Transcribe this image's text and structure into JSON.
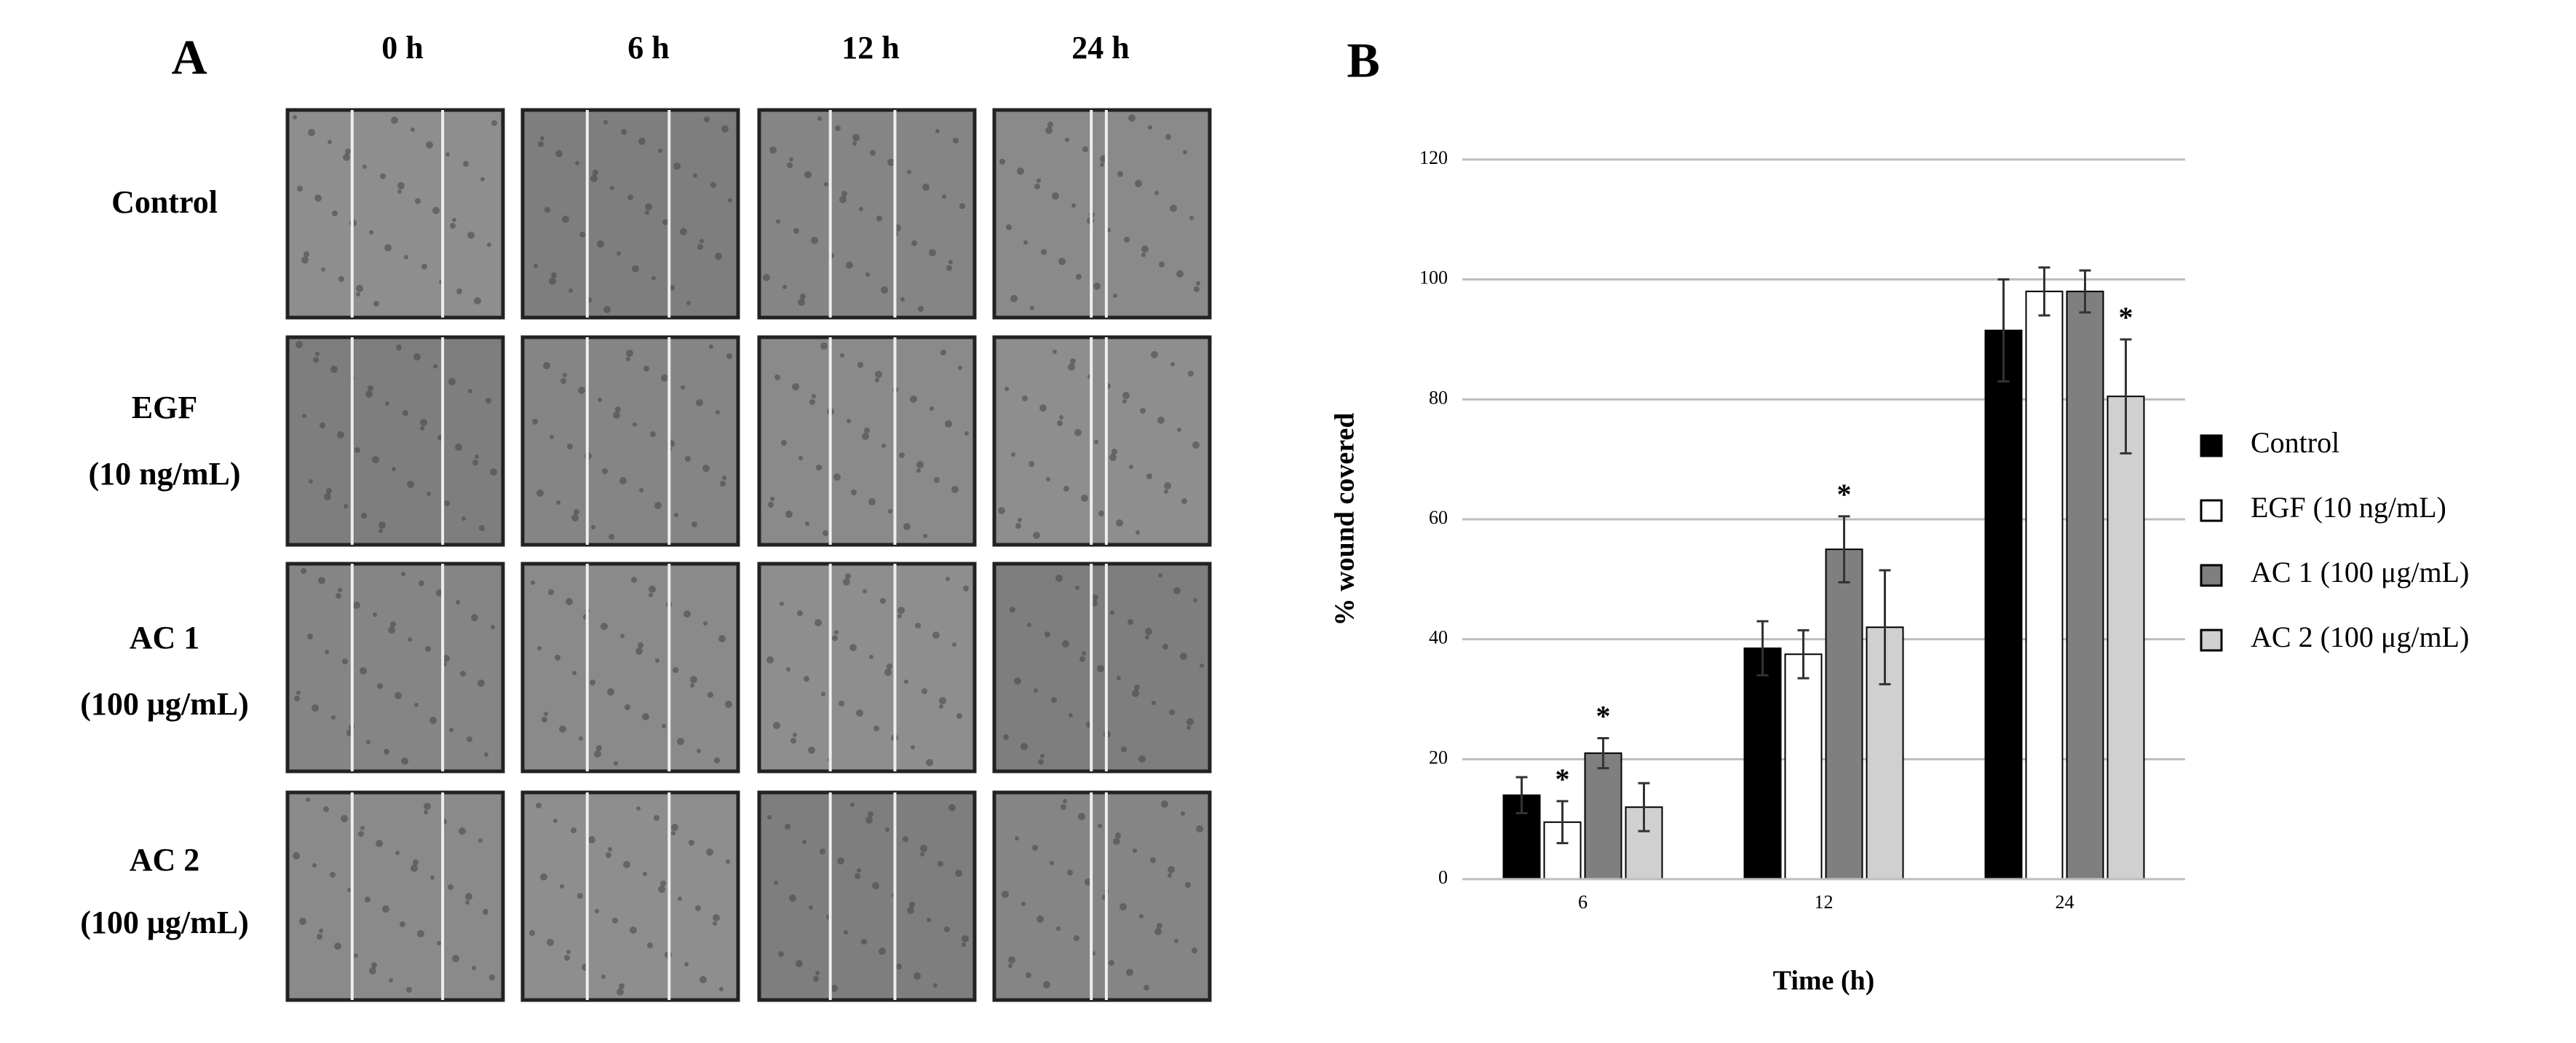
{
  "panel_a": {
    "label": "A",
    "columns": [
      "0 h",
      "6 h",
      "12 h",
      "24 h"
    ],
    "rows": [
      [
        "Control"
      ],
      [
        "EGF",
        "(10 ng/mL)"
      ],
      [
        "AC 1",
        "(100 μg/mL)"
      ],
      [
        "AC 2",
        "(100 μg/mL)"
      ]
    ]
  },
  "chart_data": {
    "type": "bar",
    "panel_label": "B",
    "x_label": "Time (h)",
    "y_label": "% wound covered",
    "categories": [
      "6",
      "12",
      "24"
    ],
    "series": [
      {
        "name": "Control",
        "color": "#000000",
        "values": [
          14,
          38.5,
          91.5
        ],
        "errors": [
          3,
          4.5,
          8.5
        ],
        "markers": [
          null,
          null,
          null
        ]
      },
      {
        "name": "EGF (10 ng/mL)",
        "color": "#ffffff",
        "values": [
          9.5,
          37.5,
          98
        ],
        "errors": [
          3.5,
          4,
          4
        ],
        "markers": [
          "*",
          null,
          null
        ]
      },
      {
        "name": "AC 1 (100 μg/mL)",
        "color": "#7f7f7f",
        "values": [
          21,
          55,
          98
        ],
        "errors": [
          2.5,
          5.5,
          3.5
        ],
        "markers": [
          "*",
          "*",
          null
        ]
      },
      {
        "name": "AC 2 (100 μg/mL)",
        "color": "#d0d0d0",
        "values": [
          12,
          42,
          80.5
        ],
        "errors": [
          4,
          9.5,
          9.5
        ],
        "markers": [
          null,
          null,
          "*"
        ]
      }
    ],
    "ylim": [
      0,
      120
    ],
    "yticks": [
      0,
      20,
      40,
      60,
      80,
      100,
      120
    ],
    "grid": true,
    "legend": "right"
  }
}
